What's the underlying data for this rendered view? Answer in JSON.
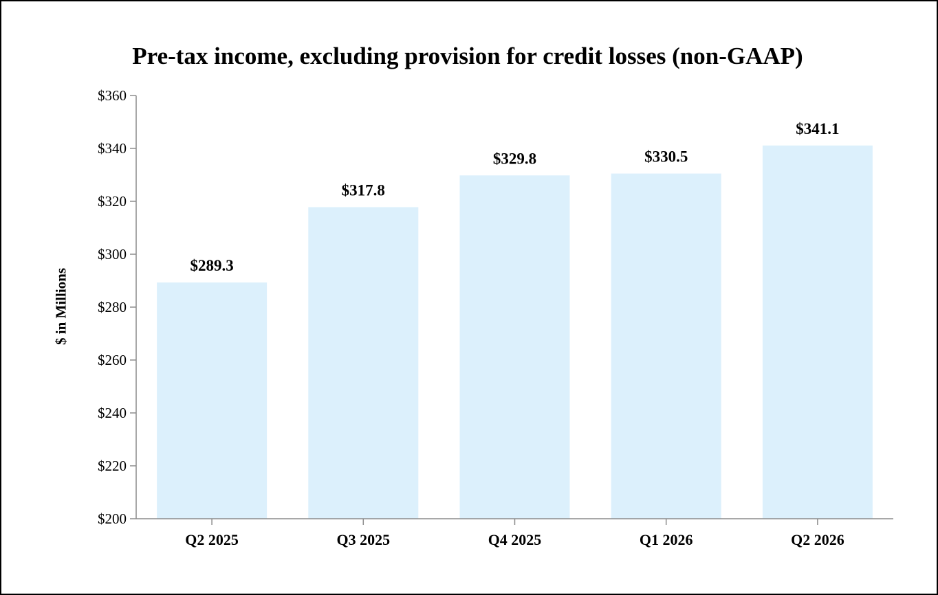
{
  "chart_data": {
    "type": "bar",
    "title": "Pre-tax income, excluding provision for credit losses (non-GAAP)",
    "xlabel": "",
    "ylabel": "$ in Millions",
    "categories": [
      "Q2 2025",
      "Q3 2025",
      "Q4 2025",
      "Q1 2026",
      "Q2 2026"
    ],
    "values": [
      289.3,
      317.8,
      329.8,
      330.5,
      341.1
    ],
    "value_labels": [
      "$289.3",
      "$317.8",
      "$329.8",
      "$330.5",
      "$341.1"
    ],
    "ylim": [
      200,
      360
    ],
    "yticks": [
      200,
      220,
      240,
      260,
      280,
      300,
      320,
      340,
      360
    ],
    "ytick_labels": [
      "$200",
      "$220",
      "$240",
      "$260",
      "$280",
      "$300",
      "$320",
      "$340",
      "$360"
    ],
    "grid": false,
    "legend": "none",
    "colors": {
      "bar": "#dcf0fc",
      "axis": "#8c8c8c",
      "text": "#000000"
    }
  }
}
